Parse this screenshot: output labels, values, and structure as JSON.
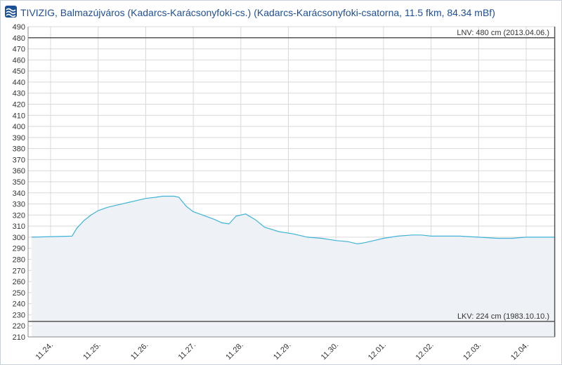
{
  "title": "TIVIZIG, Balmazújváros (Kadarcs-Karácsonyfoki-cs.) (Kadarcs-Karácsonyfoki-csatorna, 11.5 fkm, 84.34 mBf)",
  "colors": {
    "line": "#3fb3d8",
    "area": "#eef1f6",
    "grid": "#d9d9d9",
    "ref": "#555555",
    "title": "#1f4f95"
  },
  "chart_data": {
    "type": "area",
    "title": "TIVIZIG, Balmazújváros (Kadarcs-Karácsonyfoki-cs.) (Kadarcs-Karácsonyfoki-csatorna, 11.5 fkm, 84.34 mBf)",
    "xlabel": "",
    "ylabel": "",
    "ylim": [
      210,
      490
    ],
    "xlim": [
      0,
      10.72
    ],
    "grid": true,
    "x_ticks": [
      "11.24.",
      "11.25.",
      "11.26.",
      "11.27.",
      "11.28.",
      "11.29.",
      "11.30.",
      "12.01.",
      "12.02.",
      "12.03.",
      "12.04."
    ],
    "y_ticks": [
      210,
      220,
      230,
      240,
      250,
      260,
      270,
      280,
      290,
      300,
      310,
      320,
      330,
      340,
      350,
      360,
      370,
      380,
      390,
      400,
      410,
      420,
      430,
      440,
      450,
      460,
      470,
      480,
      490
    ],
    "reference_lines": [
      {
        "value": 480,
        "label": "LNV: 480 cm (2013.04.06.)"
      },
      {
        "value": 224,
        "label": "LKV: 224 cm (1983.10.10.)"
      }
    ],
    "marker_x": 10.6,
    "x": [
      -0.4,
      0.45,
      0.55,
      0.7,
      0.85,
      1.0,
      1.2,
      1.4,
      1.6,
      1.8,
      2.0,
      2.2,
      2.35,
      2.5,
      2.6,
      2.7,
      2.85,
      3.0,
      3.2,
      3.45,
      3.6,
      3.75,
      3.9,
      4.1,
      4.3,
      4.5,
      4.8,
      5.1,
      5.4,
      5.7,
      6.0,
      6.25,
      6.45,
      6.6,
      6.8,
      7.0,
      7.3,
      7.6,
      7.8,
      8.0,
      8.3,
      8.6,
      9.0,
      9.4,
      9.7,
      10.0,
      10.3,
      10.6
    ],
    "values": [
      300,
      301,
      308,
      315,
      320,
      324,
      327,
      329,
      331,
      333,
      335,
      336,
      337,
      337,
      337,
      336,
      328,
      323,
      320,
      316,
      313,
      312,
      319,
      321,
      316,
      309,
      305,
      303,
      300,
      299,
      297,
      296,
      294,
      295,
      297,
      299,
      301,
      302,
      302,
      301,
      301,
      301,
      300,
      299,
      299,
      300,
      300,
      300
    ]
  }
}
